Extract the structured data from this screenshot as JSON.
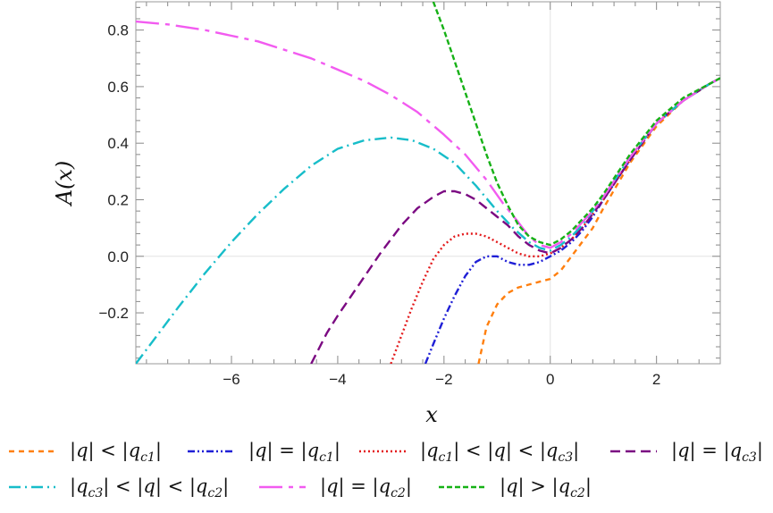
{
  "chart_data": {
    "type": "line",
    "xlabel": "x",
    "ylabel": "A(x)",
    "xlim": [
      -7.8,
      3.2
    ],
    "ylim": [
      -0.38,
      0.9
    ],
    "x_ticks": [
      -6,
      -4,
      -2,
      0,
      2
    ],
    "x_tick_labels": [
      "−6",
      "−4",
      "−2",
      "0",
      "2"
    ],
    "y_ticks": [
      -0.2,
      0.0,
      0.2,
      0.4,
      0.6,
      0.8
    ],
    "y_tick_labels": [
      "−0.2",
      "0.0",
      "0.2",
      "0.4",
      "0.6",
      "0.8"
    ],
    "grid": false,
    "zero_lines": true,
    "legend_position": "bottom",
    "series": [
      {
        "name": "|q| < |q_c1|",
        "label_parts": [
          "|q| < |q",
          "c1",
          "|"
        ],
        "color": "#ff7f0e",
        "dash": "6,5",
        "x": [
          -1.35,
          -1.2,
          -1.0,
          -0.8,
          -0.6,
          -0.4,
          -0.2,
          0.0,
          0.2,
          0.4,
          0.6,
          0.8,
          1.0,
          1.5,
          2.0,
          2.5,
          3.0,
          3.2
        ],
        "y": [
          -0.38,
          -0.25,
          -0.17,
          -0.13,
          -0.11,
          -0.1,
          -0.09,
          -0.08,
          -0.05,
          0.0,
          0.05,
          0.1,
          0.17,
          0.33,
          0.46,
          0.55,
          0.61,
          0.63
        ]
      },
      {
        "name": "|q| = |q_c1|",
        "label_parts": [
          "|q| = |q",
          "c1",
          "|"
        ],
        "color": "#1f1fd6",
        "dash": "8,3,2,3,2,3",
        "x": [
          -2.35,
          -2.2,
          -2.0,
          -1.8,
          -1.6,
          -1.4,
          -1.2,
          -1.0,
          -0.8,
          -0.6,
          -0.4,
          -0.2,
          0.0,
          0.2,
          0.4,
          0.6,
          0.8,
          1.0,
          1.5,
          2.0,
          2.5,
          3.0,
          3.2
        ],
        "y": [
          -0.38,
          -0.31,
          -0.22,
          -0.14,
          -0.07,
          -0.02,
          0.0,
          0.0,
          -0.02,
          -0.03,
          -0.03,
          -0.02,
          0.0,
          0.02,
          0.05,
          0.09,
          0.14,
          0.2,
          0.34,
          0.47,
          0.55,
          0.61,
          0.63
        ]
      },
      {
        "name": "|q_c1| < |q| < |q_c3|",
        "label_parts": [
          "|q",
          "c1",
          "| < |q| < |q",
          "c3",
          "|"
        ],
        "color": "#e31a1c",
        "dash": "2,3",
        "x": [
          -3.0,
          -2.8,
          -2.6,
          -2.4,
          -2.2,
          -2.0,
          -1.8,
          -1.6,
          -1.4,
          -1.2,
          -1.0,
          -0.8,
          -0.6,
          -0.4,
          -0.2,
          0.0,
          0.2,
          0.4,
          0.6,
          0.8,
          1.0,
          1.5,
          2.0,
          2.5,
          3.0,
          3.2
        ],
        "y": [
          -0.38,
          -0.28,
          -0.18,
          -0.09,
          -0.01,
          0.04,
          0.07,
          0.08,
          0.08,
          0.07,
          0.05,
          0.03,
          0.01,
          0.0,
          0.0,
          0.01,
          0.03,
          0.06,
          0.1,
          0.15,
          0.2,
          0.34,
          0.47,
          0.55,
          0.61,
          0.63
        ]
      },
      {
        "name": "|q| = |q_c3|",
        "label_parts": [
          "|q| = |q",
          "c3",
          "|"
        ],
        "color": "#7b0a82",
        "dash": "11,6",
        "x": [
          -4.5,
          -4.2,
          -4.0,
          -3.6,
          -3.2,
          -2.8,
          -2.5,
          -2.2,
          -2.0,
          -1.8,
          -1.6,
          -1.4,
          -1.2,
          -1.0,
          -0.8,
          -0.6,
          -0.4,
          -0.2,
          0.0,
          0.2,
          0.4,
          0.6,
          0.8,
          1.0,
          1.5,
          2.0,
          2.5,
          3.0,
          3.2
        ],
        "y": [
          -0.38,
          -0.27,
          -0.21,
          -0.1,
          0.01,
          0.11,
          0.17,
          0.21,
          0.23,
          0.23,
          0.22,
          0.2,
          0.17,
          0.14,
          0.11,
          0.07,
          0.04,
          0.02,
          0.01,
          0.03,
          0.06,
          0.1,
          0.15,
          0.2,
          0.34,
          0.47,
          0.55,
          0.61,
          0.63
        ]
      },
      {
        "name": "|q_c3| < |q| < |q_c2|",
        "label_parts": [
          "|q",
          "c3",
          "| < |q| < |q",
          "c2",
          "|"
        ],
        "color": "#17bdc9",
        "dash": "13,5,2,5",
        "x": [
          -7.8,
          -7.4,
          -7.0,
          -6.5,
          -6.0,
          -5.5,
          -5.0,
          -4.5,
          -4.0,
          -3.5,
          -3.0,
          -2.6,
          -2.2,
          -1.8,
          -1.4,
          -1.0,
          -0.7,
          -0.4,
          -0.2,
          0.0,
          0.2,
          0.4,
          0.6,
          0.8,
          1.0,
          1.5,
          2.0,
          2.5,
          3.0,
          3.2
        ],
        "y": [
          -0.38,
          -0.28,
          -0.18,
          -0.06,
          0.05,
          0.15,
          0.24,
          0.32,
          0.38,
          0.41,
          0.42,
          0.41,
          0.38,
          0.33,
          0.25,
          0.16,
          0.1,
          0.05,
          0.03,
          0.02,
          0.04,
          0.07,
          0.11,
          0.16,
          0.21,
          0.35,
          0.47,
          0.55,
          0.61,
          0.63
        ]
      },
      {
        "name": "|q| = |q_c2|",
        "label_parts": [
          "|q| = |q",
          "c2",
          "|"
        ],
        "color": "#f25bf0",
        "dash": "26,7,5,7",
        "x": [
          -7.8,
          -7.2,
          -6.5,
          -6.0,
          -5.5,
          -5.0,
          -4.5,
          -4.0,
          -3.5,
          -3.0,
          -2.5,
          -2.0,
          -1.6,
          -1.2,
          -0.9,
          -0.6,
          -0.4,
          -0.2,
          0.0,
          0.2,
          0.4,
          0.6,
          0.8,
          1.0,
          1.5,
          2.0,
          2.5,
          3.0,
          3.2
        ],
        "y": [
          0.83,
          0.82,
          0.8,
          0.78,
          0.76,
          0.73,
          0.7,
          0.66,
          0.62,
          0.57,
          0.51,
          0.43,
          0.36,
          0.27,
          0.19,
          0.12,
          0.07,
          0.04,
          0.03,
          0.05,
          0.08,
          0.12,
          0.16,
          0.21,
          0.35,
          0.47,
          0.55,
          0.61,
          0.63
        ]
      },
      {
        "name": "|q| > |q_c2|",
        "label_parts": [
          "|q| > |q",
          "c2",
          "|"
        ],
        "color": "#16b116",
        "dash": "6,3",
        "x": [
          -2.2,
          -2.0,
          -1.8,
          -1.6,
          -1.4,
          -1.2,
          -1.0,
          -0.8,
          -0.6,
          -0.4,
          -0.2,
          0.0,
          0.2,
          0.4,
          0.6,
          0.8,
          1.0,
          1.5,
          2.0,
          2.5,
          3.0,
          3.2
        ],
        "y": [
          0.9,
          0.8,
          0.69,
          0.58,
          0.47,
          0.36,
          0.26,
          0.18,
          0.11,
          0.07,
          0.05,
          0.04,
          0.06,
          0.09,
          0.13,
          0.17,
          0.22,
          0.36,
          0.48,
          0.56,
          0.61,
          0.63
        ]
      }
    ]
  }
}
